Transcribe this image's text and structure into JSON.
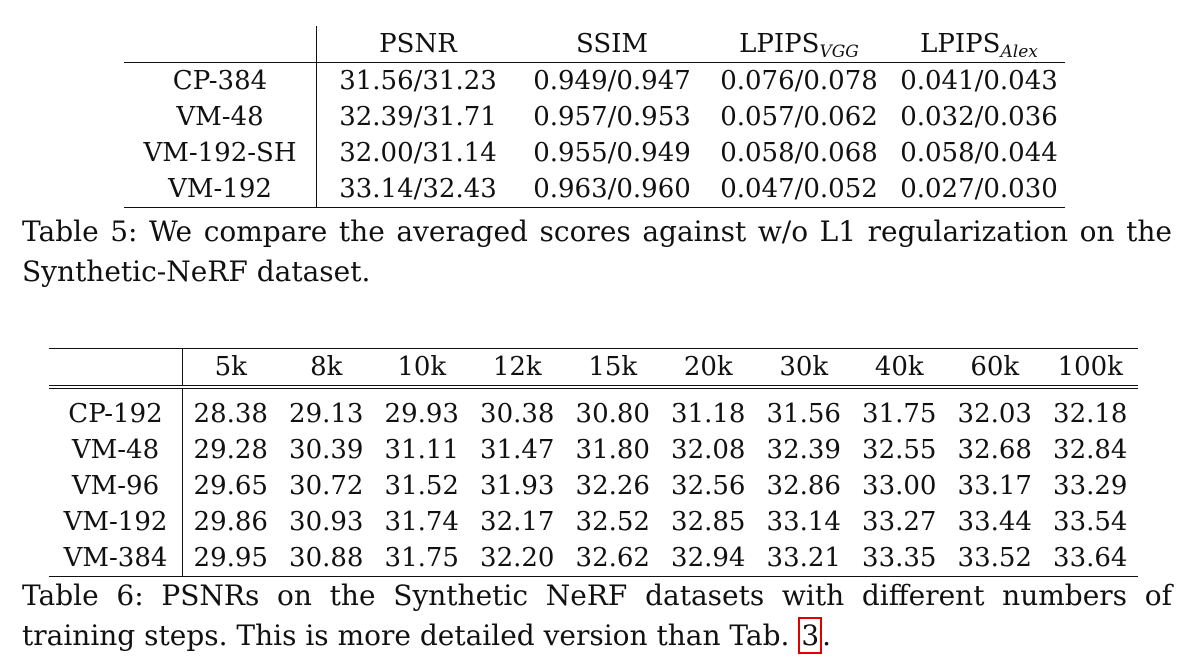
{
  "table5": {
    "headers": [
      "PSNR",
      "SSIM",
      "LPIPS",
      "LPIPS"
    ],
    "header_subs": [
      "VGG",
      "Alex"
    ],
    "rows": [
      {
        "label": "CP-384",
        "cells": [
          "31.56/31.23",
          "0.949/0.947",
          "0.076/0.078",
          "0.041/0.043"
        ]
      },
      {
        "label": "VM-48",
        "cells": [
          "32.39/31.71",
          "0.957/0.953",
          "0.057/0.062",
          "0.032/0.036"
        ]
      },
      {
        "label": "VM-192-SH",
        "cells": [
          "32.00/31.14",
          "0.955/0.949",
          "0.058/0.068",
          "0.058/0.044"
        ]
      },
      {
        "label": "VM-192",
        "cells": [
          "33.14/32.43",
          "0.963/0.960",
          "0.047/0.052",
          "0.027/0.030"
        ]
      }
    ],
    "caption": "Table 5: We compare the averaged scores against w/o L1 regularization on the Synthetic-NeRF dataset."
  },
  "table6": {
    "headers": [
      "5k",
      "8k",
      "10k",
      "12k",
      "15k",
      "20k",
      "30k",
      "40k",
      "60k",
      "100k"
    ],
    "rows": [
      {
        "label": "CP-192",
        "cells": [
          "28.38",
          "29.13",
          "29.93",
          "30.38",
          "30.80",
          "31.18",
          "31.56",
          "31.75",
          "32.03",
          "32.18"
        ]
      },
      {
        "label": "VM-48",
        "cells": [
          "29.28",
          "30.39",
          "31.11",
          "31.47",
          "31.80",
          "32.08",
          "32.39",
          "32.55",
          "32.68",
          "32.84"
        ]
      },
      {
        "label": "VM-96",
        "cells": [
          "29.65",
          "30.72",
          "31.52",
          "31.93",
          "32.26",
          "32.56",
          "32.86",
          "33.00",
          "33.17",
          "33.29"
        ]
      },
      {
        "label": "VM-192",
        "cells": [
          "29.86",
          "30.93",
          "31.74",
          "32.17",
          "32.52",
          "32.85",
          "33.14",
          "33.27",
          "33.44",
          "33.54"
        ]
      },
      {
        "label": "VM-384",
        "cells": [
          "29.95",
          "30.88",
          "31.75",
          "32.20",
          "32.62",
          "32.94",
          "33.21",
          "33.35",
          "33.52",
          "33.64"
        ]
      }
    ],
    "caption_text": "Table 6: PSNRs on the Synthetic NeRF datasets with different numbers of training steps. This is more detailed version than Tab. ",
    "caption_ref": "3",
    "caption_end": "."
  },
  "colors": {
    "text": "#111111",
    "ref_box": "#e00000"
  }
}
